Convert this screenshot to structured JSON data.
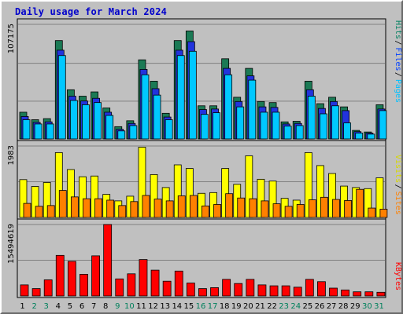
{
  "title": "Daily usage for March 2024",
  "chart_data": [
    {
      "type": "bar",
      "panel": "pages-files-hits",
      "ymax_label": "107175",
      "ylim": [
        0,
        107175
      ],
      "grid": true,
      "legend": [
        {
          "label": "Pages",
          "color": "#00c0ff"
        },
        {
          "label": "Files",
          "color": "#0040ff"
        },
        {
          "label": "Hits",
          "color": "#008060"
        }
      ],
      "categories": [
        "1",
        "2",
        "3",
        "4",
        "5",
        "6",
        "7",
        "8",
        "9",
        "10",
        "11",
        "12",
        "13",
        "14",
        "15",
        "16",
        "17",
        "18",
        "19",
        "20",
        "21",
        "22",
        "23",
        "24",
        "25",
        "26",
        "27",
        "28",
        "29",
        "30",
        "31"
      ],
      "series": [
        {
          "name": "Hits",
          "color": "#1b7a55",
          "values": [
            25000,
            18000,
            19000,
            92000,
            46000,
            40000,
            44000,
            29000,
            11500,
            17000,
            74000,
            54000,
            24000,
            92000,
            101000,
            31000,
            31000,
            75000,
            39000,
            66000,
            35000,
            34000,
            16000,
            16500,
            54000,
            33000,
            39000,
            30000,
            8000,
            6500,
            32000
          ]
        },
        {
          "name": "Files",
          "color": "#2233dd",
          "values": [
            21000,
            15500,
            16000,
            83000,
            40000,
            35500,
            38000,
            25000,
            9000,
            14500,
            65000,
            47000,
            20500,
            83000,
            91000,
            27500,
            28000,
            66000,
            35000,
            59000,
            30000,
            29500,
            14000,
            14500,
            46000,
            28500,
            35000,
            26500,
            6800,
            5500,
            28000
          ]
        },
        {
          "name": "Pages",
          "color": "#00c8ff",
          "values": [
            18000,
            14000,
            14000,
            78000,
            36000,
            32000,
            34000,
            22000,
            7500,
            12500,
            60000,
            41000,
            18000,
            78000,
            82000,
            23000,
            24500,
            60000,
            30000,
            55000,
            25000,
            25000,
            12000,
            12500,
            40000,
            23500,
            31000,
            15000,
            5500,
            4500,
            26500
          ]
        }
      ]
    },
    {
      "type": "bar",
      "panel": "sites-visits",
      "ymax_label": "1983",
      "ylim": [
        0,
        1983
      ],
      "grid": true,
      "legend": [
        {
          "label": "Sites",
          "color": "#ff8000"
        },
        {
          "label": "Visits",
          "color": "#ffff00"
        }
      ],
      "categories": [
        "1",
        "2",
        "3",
        "4",
        "5",
        "6",
        "7",
        "8",
        "9",
        "10",
        "11",
        "12",
        "13",
        "14",
        "15",
        "16",
        "17",
        "18",
        "19",
        "20",
        "21",
        "22",
        "23",
        "24",
        "25",
        "26",
        "27",
        "28",
        "29",
        "30",
        "31"
      ],
      "series": [
        {
          "name": "Visits",
          "color": "#ffff00",
          "values": [
            1050,
            860,
            970,
            1800,
            1330,
            1130,
            1150,
            640,
            460,
            590,
            1950,
            1190,
            830,
            1460,
            1360,
            670,
            690,
            1360,
            920,
            1710,
            1060,
            1010,
            530,
            480,
            1800,
            1440,
            1220,
            870,
            830,
            800,
            1100
          ]
        },
        {
          "name": "Sites",
          "color": "#ff8000",
          "values": [
            390,
            310,
            330,
            750,
            570,
            520,
            520,
            480,
            330,
            440,
            610,
            510,
            460,
            600,
            610,
            320,
            360,
            660,
            540,
            520,
            460,
            380,
            310,
            360,
            490,
            560,
            500,
            470,
            780,
            260,
            230
          ]
        }
      ]
    },
    {
      "type": "bar",
      "panel": "kbytes",
      "ymax_label": "15494619",
      "ylim": [
        0,
        15494619
      ],
      "grid": true,
      "legend": [
        {
          "label": "KBytes",
          "color": "#ff0000"
        }
      ],
      "categories": [
        "1",
        "2",
        "3",
        "4",
        "5",
        "6",
        "7",
        "8",
        "9",
        "10",
        "11",
        "12",
        "13",
        "14",
        "15",
        "16",
        "17",
        "18",
        "19",
        "20",
        "21",
        "22",
        "23",
        "24",
        "25",
        "26",
        "27",
        "28",
        "29",
        "30",
        "31"
      ],
      "series": [
        {
          "name": "KBytes",
          "color": "#ff0000",
          "values": [
            2400000,
            1600000,
            3500000,
            8800000,
            7500000,
            4700000,
            8700000,
            15494619,
            3700000,
            4800000,
            7900000,
            5600000,
            3200000,
            5400000,
            2800000,
            1600000,
            1800000,
            3600000,
            2700000,
            3600000,
            2400000,
            2200000,
            2200000,
            1900000,
            3600000,
            3100000,
            1700000,
            1300000,
            900000,
            900000,
            800000
          ]
        }
      ]
    }
  ],
  "x_axis": {
    "labels": [
      "1",
      "2",
      "3",
      "4",
      "5",
      "6",
      "7",
      "8",
      "9",
      "10",
      "11",
      "12",
      "13",
      "14",
      "15",
      "16",
      "17",
      "18",
      "19",
      "20",
      "21",
      "22",
      "23",
      "24",
      "25",
      "26",
      "27",
      "28",
      "29",
      "30",
      "31"
    ],
    "weekend_days": [
      "2",
      "3",
      "9",
      "10",
      "16",
      "17",
      "23",
      "24",
      "30",
      "31"
    ],
    "weekday_color": "#000000",
    "weekend_color": "#00805c"
  }
}
